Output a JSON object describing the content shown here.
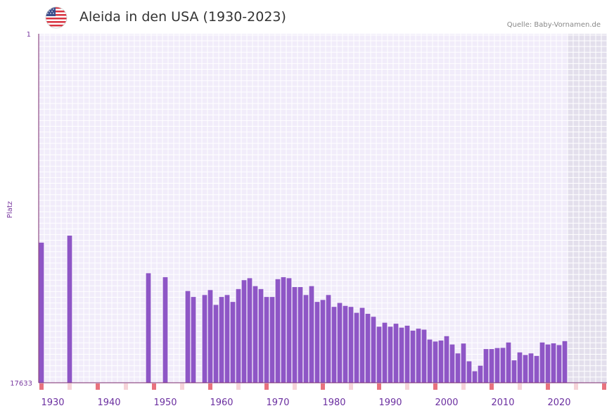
{
  "header": {
    "flag_icon": "usa-flag-icon",
    "title": "Aleida in den USA (1930-2023)",
    "source": "Quelle: Baby-Vornamen.de"
  },
  "colors": {
    "bar": "#8e56c6",
    "plot_bg": "#f1ecfa",
    "future_bg": "#e3dfec",
    "axis": "#7a2a6e",
    "decade_marker": "#e8727e",
    "half_decade_marker": "#f6d3d8"
  },
  "chart_data": {
    "type": "bar",
    "title": "Aleida in den USA (1930-2023)",
    "ylabel": "Platz",
    "y_axis_inverted": true,
    "ylim": [
      1,
      17633
    ],
    "y_tick_labels": [
      "1",
      "17633"
    ],
    "x_tick_labels": [
      "1930",
      "1940",
      "1950",
      "1960",
      "1970",
      "1980",
      "1990",
      "2000",
      "2010",
      "2020"
    ],
    "x_range": [
      1928,
      2029
    ],
    "future_from_year": 2022,
    "categories": [
      1928,
      1933,
      1947,
      1950,
      1954,
      1955,
      1957,
      1958,
      1959,
      1960,
      1961,
      1962,
      1963,
      1964,
      1965,
      1966,
      1967,
      1968,
      1969,
      1970,
      1971,
      1972,
      1973,
      1974,
      1975,
      1976,
      1977,
      1978,
      1979,
      1980,
      1981,
      1982,
      1983,
      1984,
      1985,
      1986,
      1987,
      1988,
      1989,
      1990,
      1991,
      1992,
      1993,
      1994,
      1995,
      1996,
      1997,
      1998,
      1999,
      2000,
      2001,
      2002,
      2003,
      2004,
      2005,
      2006,
      2007,
      2008,
      2009,
      2010,
      2011,
      2012,
      2013,
      2014,
      2015,
      2016,
      2017,
      2018,
      2019,
      2020,
      2021
    ],
    "values": [
      10554,
      10200,
      12100,
      12300,
      13000,
      13300,
      13200,
      12950,
      13700,
      13300,
      13200,
      13550,
      12900,
      12450,
      12350,
      12750,
      12900,
      13300,
      13300,
      12400,
      12300,
      12350,
      12800,
      12800,
      13200,
      12750,
      13550,
      13450,
      13200,
      13800,
      13600,
      13750,
      13800,
      14100,
      13850,
      14150,
      14300,
      14800,
      14600,
      14800,
      14650,
      14850,
      14750,
      15000,
      14900,
      14950,
      15450,
      15550,
      15500,
      15280,
      15700,
      16150,
      15650,
      16550,
      17050,
      16770,
      15930,
      15930,
      15880,
      15870,
      15600,
      16500,
      16100,
      16230,
      16150,
      16280,
      15600,
      15700,
      15640,
      15730,
      15530
    ]
  }
}
